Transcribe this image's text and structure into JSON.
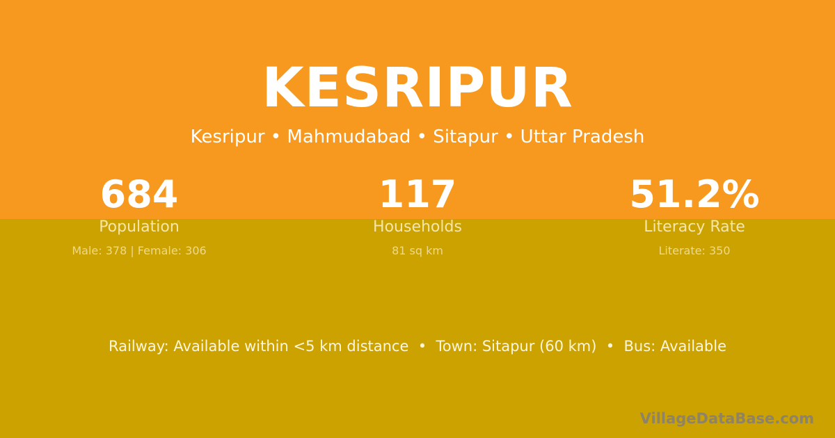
{
  "header": {
    "title": "KESRIPUR",
    "subtitle": "Kesripur • Mahmudabad • Sitapur • Uttar Pradesh"
  },
  "colors": {
    "top_band": "#F8991F",
    "bottom_band": "#CBA200"
  },
  "stats": [
    {
      "value": "684",
      "label": "Population",
      "detail": "Male: 378 | Female: 306"
    },
    {
      "value": "117",
      "label": "Households",
      "detail": "81 sq km"
    },
    {
      "value": "51.2%",
      "label": "Literacy Rate",
      "detail": "Literate: 350"
    }
  ],
  "info_line": "Railway: Available within <5 km distance  •  Town: Sitapur (60 km)  •  Bus: Available",
  "watermark": "VillageDataBase.com"
}
